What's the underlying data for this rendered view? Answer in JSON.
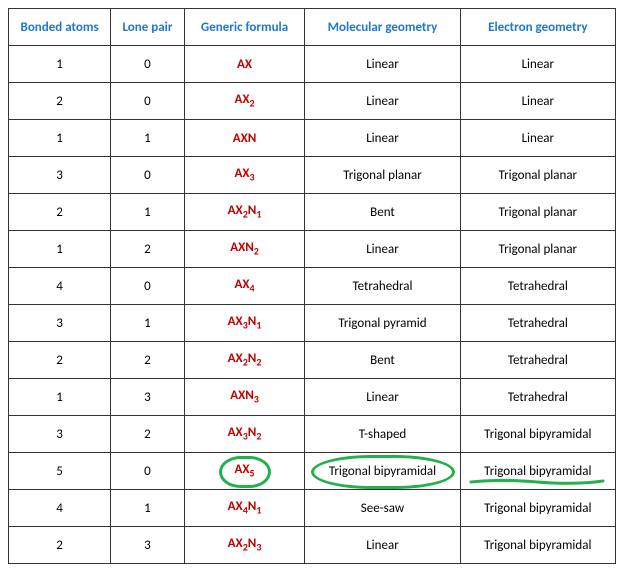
{
  "headers": {
    "bonded": "Bonded atoms",
    "lone": "Lone pair",
    "formula": "Generic formula",
    "molgeom": "Molecular geometry",
    "elgeom": "Electron geometry"
  },
  "colors": {
    "header_text": "#1f77d4",
    "formula_text": "#c00000",
    "border": "#333333",
    "annotation": "#22b14c",
    "body_text": "#000000",
    "background": "#ffffff"
  },
  "rows": [
    {
      "bonded": "1",
      "lone": "0",
      "formula": "AX",
      "molgeom": "Linear",
      "elgeom": "Linear"
    },
    {
      "bonded": "2",
      "lone": "0",
      "formula": "AX|2",
      "molgeom": "Linear",
      "elgeom": "Linear"
    },
    {
      "bonded": "1",
      "lone": "1",
      "formula": "AXN",
      "molgeom": "Linear",
      "elgeom": "Linear"
    },
    {
      "bonded": "3",
      "lone": "0",
      "formula": "AX|3",
      "molgeom": "Trigonal planar",
      "elgeom": "Trigonal planar"
    },
    {
      "bonded": "2",
      "lone": "1",
      "formula": "AX|2|N|1",
      "molgeom": "Bent",
      "elgeom": "Trigonal planar"
    },
    {
      "bonded": "1",
      "lone": "2",
      "formula": "AXN|2",
      "molgeom": "Linear",
      "elgeom": "Trigonal planar"
    },
    {
      "bonded": "4",
      "lone": "0",
      "formula": "AX|4",
      "molgeom": "Tetrahedral",
      "elgeom": "Tetrahedral"
    },
    {
      "bonded": "3",
      "lone": "1",
      "formula": "AX|3|N|1",
      "molgeom": "Trigonal pyramid",
      "elgeom": "Tetrahedral"
    },
    {
      "bonded": "2",
      "lone": "2",
      "formula": "AX|2|N|2",
      "molgeom": "Bent",
      "elgeom": "Tetrahedral"
    },
    {
      "bonded": "1",
      "lone": "3",
      "formula": "AXN|3",
      "molgeom": "Linear",
      "elgeom": "Tetrahedral"
    },
    {
      "bonded": "3",
      "lone": "2",
      "formula": "AX|3|N|2",
      "molgeom": "T-shaped",
      "elgeom": "Trigonal bipyramidal"
    },
    {
      "bonded": "5",
      "lone": "0",
      "formula": "AX|5",
      "molgeom": "Trigonal bipyramidal",
      "elgeom": "Trigonal bipyramidal",
      "highlighted": true
    },
    {
      "bonded": "4",
      "lone": "1",
      "formula": "AX|4|N|1",
      "molgeom": "See-saw",
      "elgeom": "Trigonal bipyramidal"
    },
    {
      "bonded": "2",
      "lone": "3",
      "formula": "AX|2|N|3",
      "molgeom": "Linear",
      "elgeom": "Trigonal bipyramidal"
    }
  ],
  "annotations": {
    "circle_formula": {
      "row": 11,
      "col": "formula"
    },
    "circle_molgeom": {
      "row": 11,
      "col": "molgeom"
    },
    "underline_elgeom": {
      "row": 11,
      "col": "elgeom"
    }
  }
}
